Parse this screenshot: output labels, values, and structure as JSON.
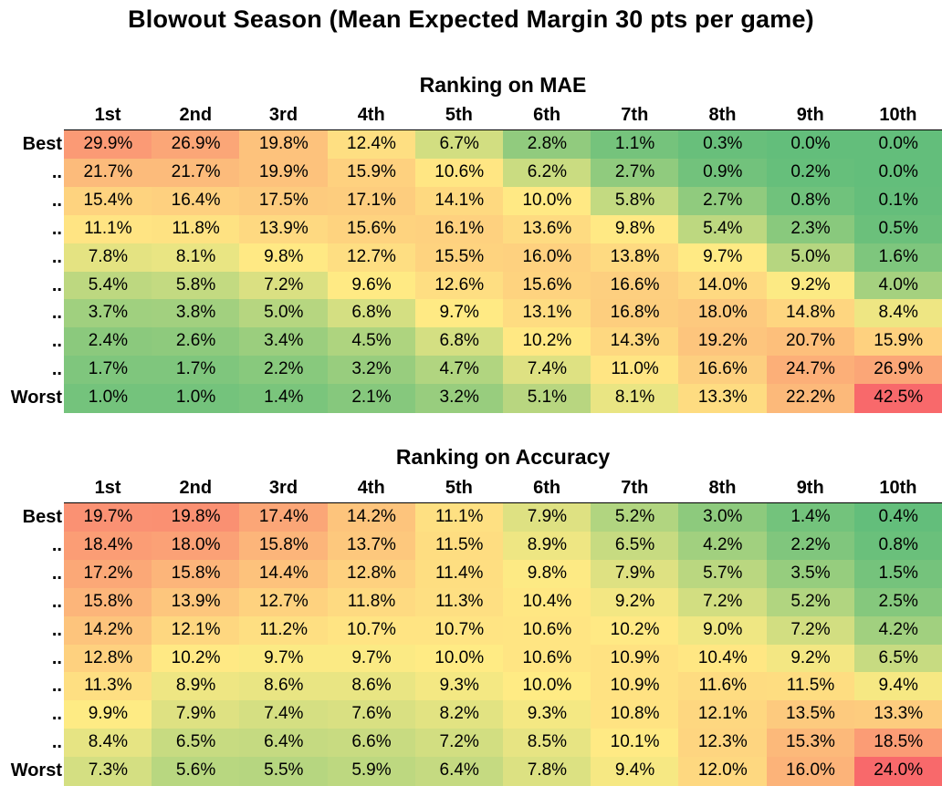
{
  "title": "Blowout Season (Mean Expected Margin 30 pts per game)",
  "chart_data": [
    {
      "type": "heatmap",
      "title": "Ranking on MAE",
      "columns": [
        "1st",
        "2nd",
        "3rd",
        "4th",
        "5th",
        "6th",
        "7th",
        "8th",
        "9th",
        "10th"
      ],
      "rows": [
        "Best",
        "..",
        "..",
        "..",
        "..",
        "..",
        "..",
        "..",
        "..",
        "Worst"
      ],
      "values": [
        [
          "29.9%",
          "26.9%",
          "19.8%",
          "12.4%",
          "6.7%",
          "2.8%",
          "1.1%",
          "0.3%",
          "0.0%",
          "0.0%"
        ],
        [
          "21.7%",
          "21.7%",
          "19.9%",
          "15.9%",
          "10.6%",
          "6.2%",
          "2.7%",
          "0.9%",
          "0.2%",
          "0.0%"
        ],
        [
          "15.4%",
          "16.4%",
          "17.5%",
          "17.1%",
          "14.1%",
          "10.0%",
          "5.8%",
          "2.7%",
          "0.8%",
          "0.1%"
        ],
        [
          "11.1%",
          "11.8%",
          "13.9%",
          "15.6%",
          "16.1%",
          "13.6%",
          "9.8%",
          "5.4%",
          "2.3%",
          "0.5%"
        ],
        [
          "7.8%",
          "8.1%",
          "9.8%",
          "12.7%",
          "15.5%",
          "16.0%",
          "13.8%",
          "9.7%",
          "5.0%",
          "1.6%"
        ],
        [
          "5.4%",
          "5.8%",
          "7.2%",
          "9.6%",
          "12.6%",
          "15.6%",
          "16.6%",
          "14.0%",
          "9.2%",
          "4.0%"
        ],
        [
          "3.7%",
          "3.8%",
          "5.0%",
          "6.8%",
          "9.7%",
          "13.1%",
          "16.8%",
          "18.0%",
          "14.8%",
          "8.4%"
        ],
        [
          "2.4%",
          "2.6%",
          "3.4%",
          "4.5%",
          "6.8%",
          "10.2%",
          "14.3%",
          "19.2%",
          "20.7%",
          "15.9%"
        ],
        [
          "1.7%",
          "1.7%",
          "2.2%",
          "3.2%",
          "4.7%",
          "7.4%",
          "11.0%",
          "16.6%",
          "24.7%",
          "26.9%"
        ],
        [
          "1.0%",
          "1.0%",
          "1.4%",
          "2.1%",
          "3.2%",
          "5.1%",
          "8.1%",
          "13.3%",
          "22.2%",
          "42.5%"
        ]
      ]
    },
    {
      "type": "heatmap",
      "title": "Ranking on Accuracy",
      "columns": [
        "1st",
        "2nd",
        "3rd",
        "4th",
        "5th",
        "6th",
        "7th",
        "8th",
        "9th",
        "10th"
      ],
      "rows": [
        "Best",
        "..",
        "..",
        "..",
        "..",
        "..",
        "..",
        "..",
        "..",
        "Worst"
      ],
      "values": [
        [
          "19.7%",
          "19.8%",
          "17.4%",
          "14.2%",
          "11.1%",
          "7.9%",
          "5.2%",
          "3.0%",
          "1.4%",
          "0.4%"
        ],
        [
          "18.4%",
          "18.0%",
          "15.8%",
          "13.7%",
          "11.5%",
          "8.9%",
          "6.5%",
          "4.2%",
          "2.2%",
          "0.8%"
        ],
        [
          "17.2%",
          "15.8%",
          "14.4%",
          "12.8%",
          "11.4%",
          "9.8%",
          "7.9%",
          "5.7%",
          "3.5%",
          "1.5%"
        ],
        [
          "15.8%",
          "13.9%",
          "12.7%",
          "11.8%",
          "11.3%",
          "10.4%",
          "9.2%",
          "7.2%",
          "5.2%",
          "2.5%"
        ],
        [
          "14.2%",
          "12.1%",
          "11.2%",
          "10.7%",
          "10.7%",
          "10.6%",
          "10.2%",
          "9.0%",
          "7.2%",
          "4.2%"
        ],
        [
          "12.8%",
          "10.2%",
          "9.7%",
          "9.7%",
          "10.0%",
          "10.6%",
          "10.9%",
          "10.4%",
          "9.2%",
          "6.5%"
        ],
        [
          "11.3%",
          "8.9%",
          "8.6%",
          "8.6%",
          "9.3%",
          "10.0%",
          "10.9%",
          "11.6%",
          "11.5%",
          "9.4%"
        ],
        [
          "9.9%",
          "7.9%",
          "7.4%",
          "7.6%",
          "8.2%",
          "9.3%",
          "10.8%",
          "12.1%",
          "13.5%",
          "13.3%"
        ],
        [
          "8.4%",
          "6.5%",
          "6.4%",
          "6.6%",
          "7.2%",
          "8.5%",
          "10.1%",
          "12.3%",
          "15.3%",
          "18.5%"
        ],
        [
          "7.3%",
          "5.6%",
          "5.5%",
          "5.9%",
          "6.4%",
          "7.8%",
          "9.4%",
          "12.0%",
          "16.0%",
          "24.0%"
        ]
      ]
    }
  ],
  "colors": {
    "low": "#63be7b",
    "mid": "#ffeb84",
    "high": "#f8696b"
  }
}
